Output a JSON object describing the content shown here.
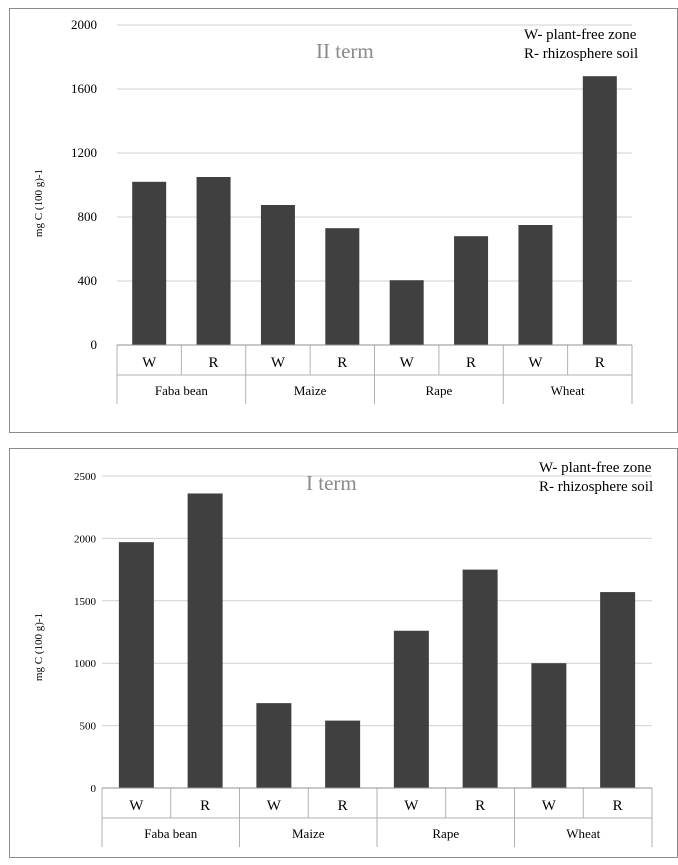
{
  "chart_data": [
    {
      "type": "bar",
      "title": "II term",
      "ylabel": "mg C (100 g)-1",
      "ylim": [
        0,
        2000
      ],
      "yticks": [
        "0",
        "400",
        "800",
        "1200",
        "1600",
        "2000"
      ],
      "legend": [
        "W- plant-free zone",
        "R- rhizosphere soil"
      ],
      "legend_position": "top-right",
      "grid": true,
      "bar_color": "#404040",
      "groups": [
        {
          "name": "Faba bean",
          "labels": [
            "W",
            "R"
          ],
          "values": [
            1020,
            1050
          ]
        },
        {
          "name": "Maize",
          "labels": [
            "W",
            "R"
          ],
          "values": [
            875,
            730
          ]
        },
        {
          "name": "Rape",
          "labels": [
            "W",
            "R"
          ],
          "values": [
            405,
            680
          ]
        },
        {
          "name": "Wheat",
          "labels": [
            "W",
            "R"
          ],
          "values": [
            750,
            1680
          ]
        }
      ]
    },
    {
      "type": "bar",
      "title": "I term",
      "ylabel": "mg C (100 g)-1",
      "ylim": [
        0,
        2500
      ],
      "yticks": [
        "0",
        "500",
        "1000",
        "1500",
        "2000",
        "2500"
      ],
      "legend": [
        "W- plant-free zone",
        "R- rhizosphere soil"
      ],
      "legend_position": "top-right",
      "grid": true,
      "bar_color": "#404040",
      "groups": [
        {
          "name": "Faba bean",
          "labels": [
            "W",
            "R"
          ],
          "values": [
            1970,
            2360
          ]
        },
        {
          "name": "Maize",
          "labels": [
            "W",
            "R"
          ],
          "values": [
            680,
            540
          ]
        },
        {
          "name": "Rape",
          "labels": [
            "W",
            "R"
          ],
          "values": [
            1260,
            1750
          ]
        },
        {
          "name": "Wheat",
          "labels": [
            "W",
            "R"
          ],
          "values": [
            1000,
            1570
          ]
        }
      ]
    }
  ]
}
